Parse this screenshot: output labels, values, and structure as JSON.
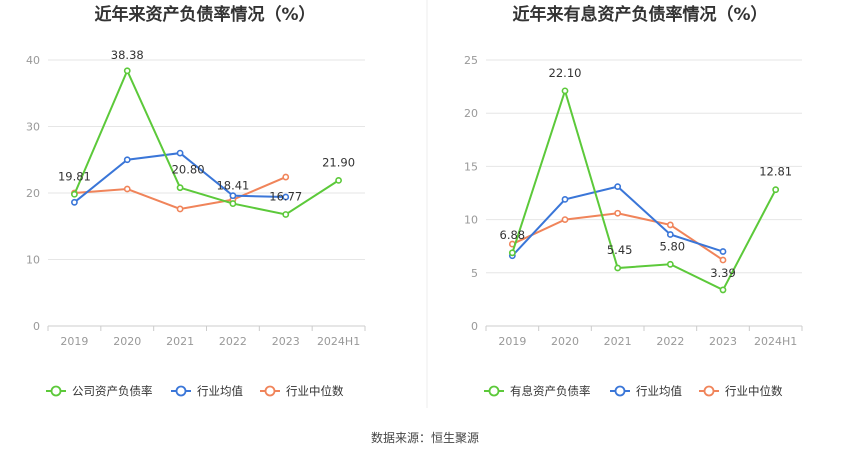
{
  "chart_data": [
    {
      "type": "line",
      "title": "近年来资产负债率情况（%）",
      "categories": [
        "2019",
        "2020",
        "2021",
        "2022",
        "2023",
        "2024H1"
      ],
      "ylim": [
        0,
        40
      ],
      "yticks": [
        0,
        10,
        20,
        30,
        40
      ],
      "grid": true,
      "legend_position": "bottom",
      "series": [
        {
          "name": "公司资产负债率",
          "color": "#5cc93a",
          "values": [
            19.81,
            38.38,
            20.8,
            18.41,
            16.77,
            21.9
          ],
          "labels": [
            "19.81",
            "38.38",
            "20.80",
            "18.41",
            "16.77",
            "21.90"
          ]
        },
        {
          "name": "行业均值",
          "color": "#3a76d8",
          "values": [
            18.6,
            25.0,
            26.0,
            19.6,
            19.4,
            null
          ]
        },
        {
          "name": "行业中位数",
          "color": "#f0845a",
          "values": [
            20.0,
            20.6,
            17.6,
            19.0,
            22.4,
            null
          ]
        }
      ]
    },
    {
      "type": "line",
      "title": "近年来有息资产负债率情况（%）",
      "categories": [
        "2019",
        "2020",
        "2021",
        "2022",
        "2023",
        "2024H1"
      ],
      "ylim": [
        0,
        25
      ],
      "yticks": [
        0,
        5,
        10,
        15,
        20,
        25
      ],
      "grid": true,
      "legend_position": "bottom",
      "series": [
        {
          "name": "有息资产负债率",
          "color": "#5cc93a",
          "values": [
            6.88,
            22.1,
            5.45,
            5.8,
            3.39,
            12.81
          ],
          "labels": [
            "6.88",
            "22.10",
            "5.45",
            "5.80",
            "3.39",
            "12.81"
          ]
        },
        {
          "name": "行业均值",
          "color": "#3a76d8",
          "values": [
            6.6,
            11.9,
            13.1,
            8.6,
            7.0,
            null
          ]
        },
        {
          "name": "行业中位数",
          "color": "#f0845a",
          "values": [
            7.7,
            10.0,
            10.6,
            9.5,
            6.2,
            null
          ]
        }
      ]
    }
  ],
  "source": "数据来源：恒生聚源"
}
